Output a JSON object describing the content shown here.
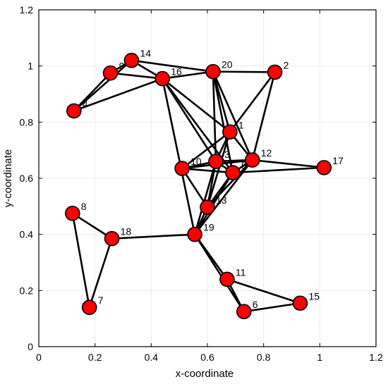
{
  "chart_data": {
    "type": "scatter",
    "title": "",
    "xlabel": "x-coordinate",
    "ylabel": "y-coordinate",
    "xlim": [
      0,
      1.2
    ],
    "ylim": [
      0,
      1.2
    ],
    "xticks": [
      "0",
      "0.2",
      "0.4",
      "0.6",
      "0.8",
      "1",
      "1.2"
    ],
    "yticks": [
      "0",
      "0.2",
      "0.4",
      "0.6",
      "0.8",
      "1",
      "1.2"
    ],
    "xtick_values": [
      0,
      0.2,
      0.4,
      0.6,
      0.8,
      1.0,
      1.2
    ],
    "ytick_values": [
      0,
      0.2,
      0.4,
      0.6,
      0.8,
      1.0,
      1.2
    ],
    "grid": false,
    "node_color": "#ff0000",
    "edge_color": "#000000",
    "nodes": [
      {
        "id": "1",
        "x": 0.68,
        "y": 0.765
      },
      {
        "id": "2",
        "x": 0.84,
        "y": 0.978
      },
      {
        "id": "3",
        "x": 0.63,
        "y": 0.66
      },
      {
        "id": "4",
        "x": 0.125,
        "y": 0.84
      },
      {
        "id": "5",
        "x": 0.69,
        "y": 0.62
      },
      {
        "id": "6",
        "x": 0.73,
        "y": 0.125
      },
      {
        "id": "7",
        "x": 0.18,
        "y": 0.14
      },
      {
        "id": "8",
        "x": 0.12,
        "y": 0.475
      },
      {
        "id": "9",
        "x": 0.255,
        "y": 0.975
      },
      {
        "id": "10",
        "x": 0.51,
        "y": 0.635
      },
      {
        "id": "11",
        "x": 0.67,
        "y": 0.24
      },
      {
        "id": "12",
        "x": 0.76,
        "y": 0.665
      },
      {
        "id": "13",
        "x": 0.6,
        "y": 0.497
      },
      {
        "id": "14",
        "x": 0.33,
        "y": 1.02
      },
      {
        "id": "15",
        "x": 0.93,
        "y": 0.155
      },
      {
        "id": "16",
        "x": 0.44,
        "y": 0.955
      },
      {
        "id": "17",
        "x": 1.015,
        "y": 0.638
      },
      {
        "id": "18",
        "x": 0.26,
        "y": 0.385
      },
      {
        "id": "19",
        "x": 0.555,
        "y": 0.4
      },
      {
        "id": "20",
        "x": 0.62,
        "y": 0.98
      }
    ],
    "edges": [
      [
        "4",
        "9"
      ],
      [
        "4",
        "14"
      ],
      [
        "4",
        "16"
      ],
      [
        "9",
        "14"
      ],
      [
        "9",
        "16"
      ],
      [
        "14",
        "16"
      ],
      [
        "14",
        "20"
      ],
      [
        "16",
        "20"
      ],
      [
        "16",
        "1"
      ],
      [
        "16",
        "3"
      ],
      [
        "16",
        "5"
      ],
      [
        "16",
        "19"
      ],
      [
        "20",
        "2"
      ],
      [
        "20",
        "1"
      ],
      [
        "20",
        "3"
      ],
      [
        "20",
        "5"
      ],
      [
        "20",
        "12"
      ],
      [
        "2",
        "1"
      ],
      [
        "2",
        "12"
      ],
      [
        "1",
        "10"
      ],
      [
        "1",
        "3"
      ],
      [
        "1",
        "12"
      ],
      [
        "1",
        "13"
      ],
      [
        "10",
        "3"
      ],
      [
        "10",
        "5"
      ],
      [
        "10",
        "12"
      ],
      [
        "10",
        "13"
      ],
      [
        "3",
        "5"
      ],
      [
        "3",
        "12"
      ],
      [
        "3",
        "13"
      ],
      [
        "3",
        "19"
      ],
      [
        "5",
        "12"
      ],
      [
        "5",
        "17"
      ],
      [
        "5",
        "13"
      ],
      [
        "5",
        "19"
      ],
      [
        "12",
        "17"
      ],
      [
        "12",
        "13"
      ],
      [
        "12",
        "19"
      ],
      [
        "13",
        "19"
      ],
      [
        "8",
        "18"
      ],
      [
        "8",
        "7"
      ],
      [
        "7",
        "18"
      ],
      [
        "18",
        "19"
      ],
      [
        "19",
        "11"
      ],
      [
        "19",
        "6"
      ],
      [
        "11",
        "6"
      ],
      [
        "11",
        "15"
      ],
      [
        "6",
        "15"
      ]
    ]
  }
}
